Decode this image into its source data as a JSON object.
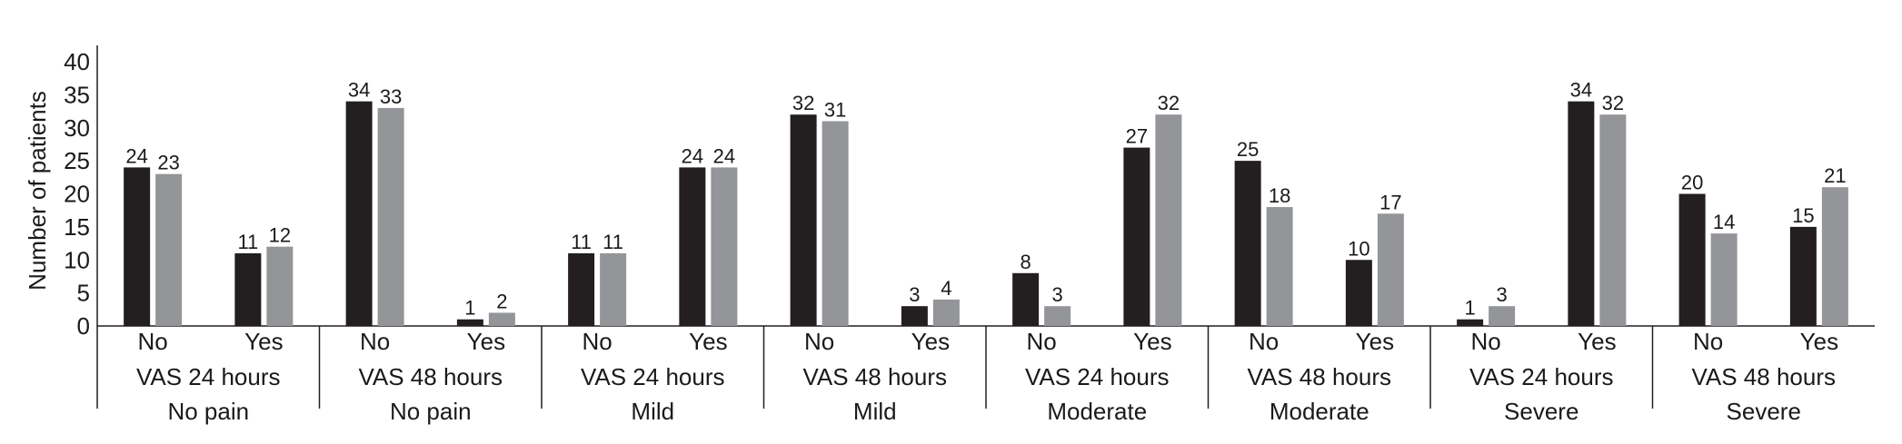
{
  "chart_data": {
    "type": "bar",
    "ylabel": "Number of patients",
    "ylim": [
      0,
      40
    ],
    "yticks": [
      0,
      5,
      10,
      15,
      20,
      25,
      30,
      35,
      40
    ],
    "grid": false,
    "legend": "none",
    "series_colors": [
      "#231f20",
      "#939598"
    ],
    "groups": [
      {
        "line1": "VAS 24 hours",
        "line2": "No pain",
        "categories": [
          {
            "label": "No",
            "values": [
              24,
              23
            ]
          },
          {
            "label": "Yes",
            "values": [
              11,
              12
            ]
          }
        ]
      },
      {
        "line1": "VAS 48 hours",
        "line2": "No pain",
        "categories": [
          {
            "label": "No",
            "values": [
              34,
              33
            ]
          },
          {
            "label": "Yes",
            "values": [
              1,
              2
            ]
          }
        ]
      },
      {
        "line1": "VAS 24 hours",
        "line2": "Mild",
        "categories": [
          {
            "label": "No",
            "values": [
              11,
              11
            ]
          },
          {
            "label": "Yes",
            "values": [
              24,
              24
            ]
          }
        ]
      },
      {
        "line1": "VAS 48 hours",
        "line2": "Mild",
        "categories": [
          {
            "label": "No",
            "values": [
              32,
              31
            ]
          },
          {
            "label": "Yes",
            "values": [
              3,
              4
            ]
          }
        ]
      },
      {
        "line1": "VAS 24 hours",
        "line2": "Moderate",
        "categories": [
          {
            "label": "No",
            "values": [
              8,
              3
            ]
          },
          {
            "label": "Yes",
            "values": [
              27,
              32
            ]
          }
        ]
      },
      {
        "line1": "VAS 48 hours",
        "line2": "Moderate",
        "categories": [
          {
            "label": "No",
            "values": [
              25,
              18
            ]
          },
          {
            "label": "Yes",
            "values": [
              10,
              17
            ]
          }
        ]
      },
      {
        "line1": "VAS 24 hours",
        "line2": "Severe",
        "categories": [
          {
            "label": "No",
            "values": [
              1,
              3
            ]
          },
          {
            "label": "Yes",
            "values": [
              34,
              32
            ]
          }
        ]
      },
      {
        "line1": "VAS 48 hours",
        "line2": "Severe",
        "categories": [
          {
            "label": "No",
            "values": [
              20,
              14
            ]
          },
          {
            "label": "Yes",
            "values": [
              15,
              21
            ]
          }
        ]
      }
    ]
  }
}
